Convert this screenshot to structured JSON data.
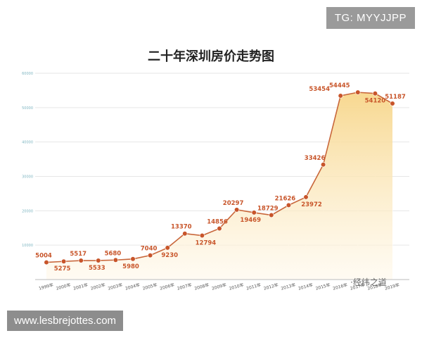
{
  "overlay": {
    "tag": "TG: MYYJJPP",
    "url": "www.lesbrejottes.com",
    "watermark": "·经纬之道"
  },
  "chart_data": {
    "type": "area",
    "title": "二十年深圳房价走势图",
    "xlabel": "",
    "ylabel": "",
    "categories": [
      "1999年",
      "2000年",
      "2001年",
      "2002年",
      "2003年",
      "2004年",
      "2005年",
      "2006年",
      "2007年",
      "2008年",
      "2009年",
      "2010年",
      "2011年",
      "2012年",
      "2013年",
      "2014年",
      "2015年",
      "2016年",
      "2017年",
      "2018年",
      "2019年"
    ],
    "values": [
      5004,
      5275,
      5517,
      5533,
      5680,
      5980,
      7040,
      9230,
      13370,
      12794,
      14856,
      20297,
      19469,
      18729,
      21626,
      23972,
      33426,
      53454,
      54445,
      54120,
      51187
    ],
    "value_labels": [
      "5004",
      "5275",
      "5517",
      "5533",
      "5680",
      "5980",
      "7040",
      "9230",
      "13370",
      "12794",
      "14856",
      "20297",
      "19469",
      "18729",
      "21626",
      "23972",
      "33426",
      "53454",
      "54445",
      "54120",
      "51187"
    ],
    "y_ticks": [
      10000,
      20000,
      30000,
      40000,
      50000,
      60000
    ],
    "y_tick_labels": [
      "10000",
      "20000",
      "30000",
      "40000",
      "50000",
      "60000"
    ],
    "ylim": [
      0,
      60000
    ],
    "grid": true,
    "legend": "none",
    "colors": {
      "line": "#c8663a",
      "marker": "#c8552a",
      "label": "#c8552a",
      "fill_top": "#f7d68a",
      "fill_bottom": "#fff8ea",
      "grid": "#e6e6e6",
      "y_tick_label": "#7fb6c2"
    }
  }
}
